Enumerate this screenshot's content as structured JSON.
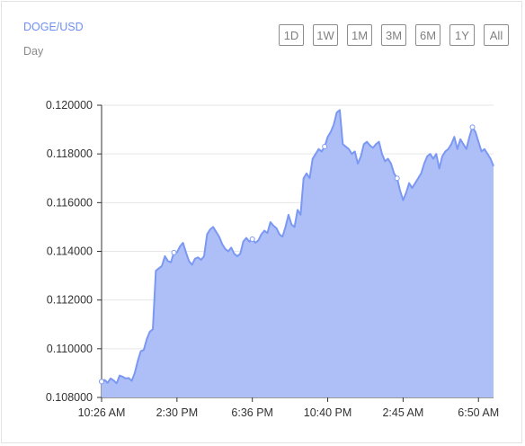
{
  "header": {
    "pair": "DOGE/USD",
    "interval": "Day"
  },
  "range_buttons": [
    "1D",
    "1W",
    "1M",
    "3M",
    "6M",
    "1Y",
    "All"
  ],
  "colors": {
    "line": "#7b98f2",
    "fill": "#aebff8",
    "accent": "#6f8ff4"
  },
  "chart_data": {
    "type": "area",
    "title": "",
    "xlabel": "",
    "ylabel": "",
    "ylim": [
      0.108,
      0.12
    ],
    "y_ticks": [
      "0.120000",
      "0.118000",
      "0.116000",
      "0.114000",
      "0.112000",
      "0.110000",
      "0.108000"
    ],
    "x_ticks": [
      {
        "label": "10:26 AM",
        "index": 0
      },
      {
        "label": "2:30 PM",
        "index": 25
      },
      {
        "label": "6:36 PM",
        "index": 50
      },
      {
        "label": "10:40 PM",
        "index": 75
      },
      {
        "label": "2:45 AM",
        "index": 100
      },
      {
        "label": "6:50 AM",
        "index": 125
      }
    ],
    "grid": "horizontal",
    "marked_points": [
      0,
      24,
      50,
      74,
      98,
      123
    ],
    "values": [
      0.10865,
      0.10872,
      0.1086,
      0.10878,
      0.1087,
      0.10858,
      0.1089,
      0.10885,
      0.10878,
      0.1088,
      0.10868,
      0.109,
      0.1095,
      0.1099,
      0.10995,
      0.1104,
      0.1107,
      0.1108,
      0.1132,
      0.1133,
      0.1134,
      0.1138,
      0.1136,
      0.11355,
      0.11395,
      0.11395,
      0.1142,
      0.11435,
      0.11395,
      0.1136,
      0.11345,
      0.1137,
      0.11375,
      0.11365,
      0.1138,
      0.1147,
      0.1149,
      0.115,
      0.1148,
      0.1146,
      0.1143,
      0.1141,
      0.114,
      0.11415,
      0.1139,
      0.1138,
      0.1139,
      0.1144,
      0.11455,
      0.1144,
      0.1145,
      0.11435,
      0.11445,
      0.1147,
      0.11485,
      0.11475,
      0.1152,
      0.11505,
      0.11495,
      0.1147,
      0.1146,
      0.115,
      0.1155,
      0.1151,
      0.115,
      0.1157,
      0.1155,
      0.117,
      0.1172,
      0.117,
      0.1178,
      0.118,
      0.1182,
      0.1181,
      0.1183,
      0.1187,
      0.1189,
      0.1192,
      0.1197,
      0.1198,
      0.1184,
      0.1183,
      0.1182,
      0.118,
      0.1181,
      0.1176,
      0.1179,
      0.1184,
      0.1185,
      0.11835,
      0.11825,
      0.1184,
      0.1185,
      0.118,
      0.1177,
      0.1178,
      0.1176,
      0.1172,
      0.117,
      0.1165,
      0.1161,
      0.1164,
      0.1168,
      0.1166,
      0.1168,
      0.117,
      0.1172,
      0.1176,
      0.1179,
      0.118,
      0.1178,
      0.118,
      0.1174,
      0.1179,
      0.1181,
      0.1182,
      0.1184,
      0.1187,
      0.1182,
      0.1186,
      0.1184,
      0.1182,
      0.1187,
      0.1191,
      0.1189,
      0.1185,
      0.1181,
      0.1182,
      0.118,
      0.1178,
      0.1175
    ]
  }
}
